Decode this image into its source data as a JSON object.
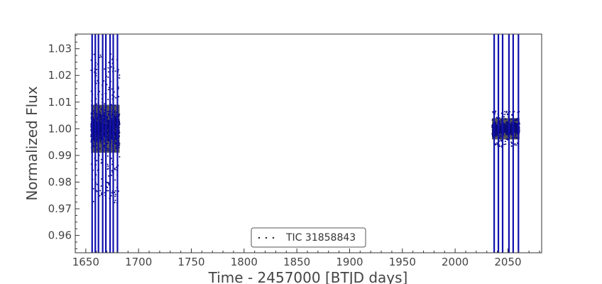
{
  "chart_data": {
    "type": "scatter",
    "title": "",
    "xlabel": "Time - 2457000 [BTJD days]",
    "ylabel": "Normalized Flux",
    "xlim": [
      1640,
      2082
    ],
    "ylim": [
      0.9535,
      1.0355
    ],
    "x_ticks": [
      1650,
      1700,
      1750,
      1800,
      1850,
      1900,
      1950,
      2000,
      2050
    ],
    "x_tick_labels": [
      "1650",
      "1700",
      "1750",
      "1800",
      "1850",
      "1900",
      "1950",
      "2000",
      "2050"
    ],
    "y_ticks": [
      0.96,
      0.97,
      0.98,
      0.99,
      1.0,
      1.01,
      1.02,
      1.03
    ],
    "y_tick_labels": [
      "0.96",
      "0.97",
      "0.98",
      "0.99",
      "1.00",
      "1.01",
      "1.02",
      "1.03"
    ],
    "grid": false,
    "legend": {
      "position": "bottom-center",
      "entries": [
        "TIC 31858843"
      ]
    },
    "colors": {
      "points": "#0b0b7a",
      "event_lines": "#1010b0",
      "core": "#3a3a3a"
    },
    "series": [
      {
        "name": "TIC 31858843",
        "segments": [
          {
            "x_range": [
              1655,
              1682
            ],
            "center": 1.0,
            "core_halfwidth": 0.009,
            "outer_halfwidth": 0.028
          },
          {
            "x_range": [
              2035,
              2061
            ],
            "center": 1.0,
            "core_halfwidth": 0.004,
            "outer_halfwidth": 0.007
          }
        ]
      }
    ],
    "vertical_lines_x": [
      1656,
      1659,
      1662,
      1666,
      1669,
      1673,
      1676,
      1680,
      2037,
      2041,
      2045,
      2051,
      2055,
      2060
    ]
  }
}
